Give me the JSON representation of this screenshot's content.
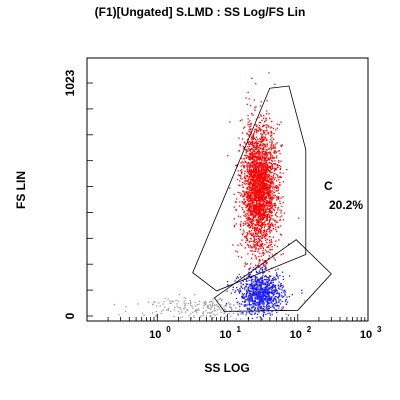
{
  "chart_data": {
    "type": "scatter",
    "title": "(F1)[Ungated] S.LMD : SS Log/FS Lin",
    "xlabel": "SS LOG",
    "ylabel": "FS LIN",
    "x_scale": "log",
    "xlim": [
      0.1,
      1000
    ],
    "x_ticks": [
      {
        "value": 1,
        "base": "10",
        "exp": "0"
      },
      {
        "value": 10,
        "base": "10",
        "exp": "1"
      },
      {
        "value": 100,
        "base": "10",
        "exp": "2"
      },
      {
        "value": 1000,
        "base": "10",
        "exp": "3"
      }
    ],
    "y_scale": "linear",
    "ylim": [
      0,
      1023
    ],
    "y_ticks": [
      {
        "value": 0,
        "label": "0"
      },
      {
        "value": 1023,
        "label": "1023"
      }
    ],
    "series": [
      {
        "color": "#ff0000",
        "center": [
          28,
          560
        ],
        "count": 2600,
        "spread": [
          0.13,
          140
        ]
      },
      {
        "color": "#1a1aff",
        "center": [
          30,
          100
        ],
        "count": 900,
        "spread": [
          0.16,
          45
        ]
      },
      {
        "color": "#999999",
        "center": [
          4,
          40
        ],
        "count": 220,
        "spread": [
          0.45,
          25
        ]
      }
    ],
    "gates": [
      {
        "name": "C",
        "value": "20.2%",
        "polygon": [
          [
            3.2,
            190
          ],
          [
            40,
            1000
          ],
          [
            75,
            1010
          ],
          [
            130,
            730
          ],
          [
            130,
            270
          ],
          [
            7,
            110
          ]
        ]
      },
      {
        "name": "",
        "value": "",
        "polygon": [
          [
            6.5,
            80
          ],
          [
            95,
            335
          ],
          [
            300,
            185
          ],
          [
            100,
            25
          ],
          [
            9,
            20
          ]
        ]
      }
    ]
  }
}
